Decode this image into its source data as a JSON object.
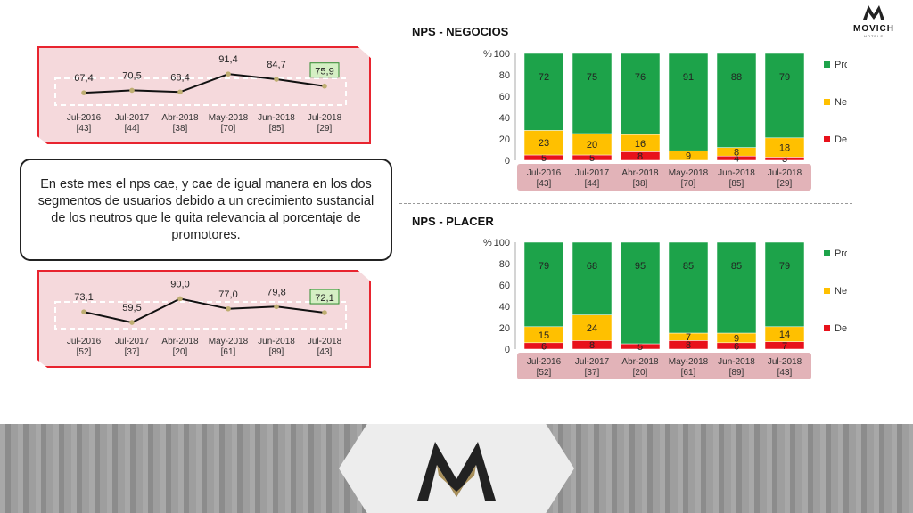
{
  "brand": {
    "name": "MOVICH",
    "sub": "HOTELS"
  },
  "titles": {
    "negocios": "NPS - NEGOCIOS",
    "placer": "NPS - PLACER"
  },
  "comment": "En este mes el nps cae, y cae de igual manera en los dos segmentos de usuarios debido a un crecimiento sustancial de los neutros que le quita relevancia al porcentaje de promotores.",
  "legend": {
    "promotores": "Promotores",
    "neutros": "Neutros",
    "detractores": "Detractores"
  },
  "axis_percent": "%",
  "colors": {
    "promotores": "#1da34a",
    "neutros": "#ffc000",
    "detractores": "#e8111b",
    "panel": "#f5d9dc",
    "panel_border": "#e8242f"
  },
  "chart_data": [
    {
      "type": "line",
      "segment": "negocios",
      "categories": [
        "Jul-2016",
        "Jul-2017",
        "Abr-2018",
        "May-2018",
        "Jun-2018",
        "Jul-2018"
      ],
      "counts": [
        "[43]",
        "[44]",
        "[38]",
        "[70]",
        "[85]",
        "[29]"
      ],
      "values": [
        67.4,
        70.5,
        68.4,
        91.4,
        84.7,
        75.9
      ],
      "labels": [
        "67,4",
        "70,5",
        "68,4",
        "91,4",
        "84,7",
        "75,9"
      ],
      "highlight_last": true
    },
    {
      "type": "line",
      "segment": "placer",
      "categories": [
        "Jul-2016",
        "Jul-2017",
        "Abr-2018",
        "May-2018",
        "Jun-2018",
        "Jul-2018"
      ],
      "counts": [
        "[52]",
        "[37]",
        "[20]",
        "[61]",
        "[89]",
        "[43]"
      ],
      "values": [
        73.1,
        59.5,
        90.0,
        77.0,
        79.8,
        72.1
      ],
      "labels": [
        "73,1",
        "59,5",
        "90,0",
        "77,0",
        "79,8",
        "72,1"
      ],
      "highlight_last": true
    },
    {
      "type": "bar",
      "stacked": true,
      "segment": "negocios",
      "categories": [
        "Jul-2016",
        "Jul-2017",
        "Abr-2018",
        "May-2018",
        "Jun-2018",
        "Jul-2018"
      ],
      "counts": [
        "[43]",
        "[44]",
        "[38]",
        "[70]",
        "[85]",
        "[29]"
      ],
      "ylim": [
        0,
        100
      ],
      "yticks": [
        0,
        20,
        40,
        60,
        80,
        100
      ],
      "series": [
        {
          "name": "Detractores",
          "values": [
            5,
            5,
            8,
            0,
            4,
            3
          ],
          "labels": [
            "5",
            "5",
            "8",
            "",
            "4",
            "3"
          ]
        },
        {
          "name": "Neutros",
          "values": [
            23,
            20,
            16,
            9,
            8,
            18
          ],
          "labels": [
            "23",
            "20",
            "16",
            "9",
            "8",
            "18"
          ]
        },
        {
          "name": "Promotores",
          "values": [
            72,
            75,
            76,
            91,
            88,
            79
          ],
          "labels": [
            "72",
            "75",
            "76",
            "91",
            "88",
            "79"
          ]
        }
      ],
      "legend": "right"
    },
    {
      "type": "bar",
      "stacked": true,
      "segment": "placer",
      "categories": [
        "Jul-2016",
        "Jul-2017",
        "Abr-2018",
        "May-2018",
        "Jun-2018",
        "Jul-2018"
      ],
      "counts": [
        "[52]",
        "[37]",
        "[20]",
        "[61]",
        "[89]",
        "[43]"
      ],
      "ylim": [
        0,
        100
      ],
      "yticks": [
        0,
        20,
        40,
        60,
        80,
        100
      ],
      "series": [
        {
          "name": "Detractores",
          "values": [
            6,
            8,
            5,
            8,
            6,
            7
          ],
          "labels": [
            "6",
            "8",
            "5",
            "8",
            "6",
            "7"
          ]
        },
        {
          "name": "Neutros",
          "values": [
            15,
            24,
            0,
            7,
            9,
            14
          ],
          "labels": [
            "15",
            "24",
            "",
            "7",
            "9",
            "14"
          ]
        },
        {
          "name": "Promotores",
          "values": [
            79,
            68,
            95,
            85,
            85,
            79
          ],
          "labels": [
            "79",
            "68",
            "95",
            "85",
            "85",
            "79"
          ]
        }
      ],
      "legend": "right"
    }
  ]
}
